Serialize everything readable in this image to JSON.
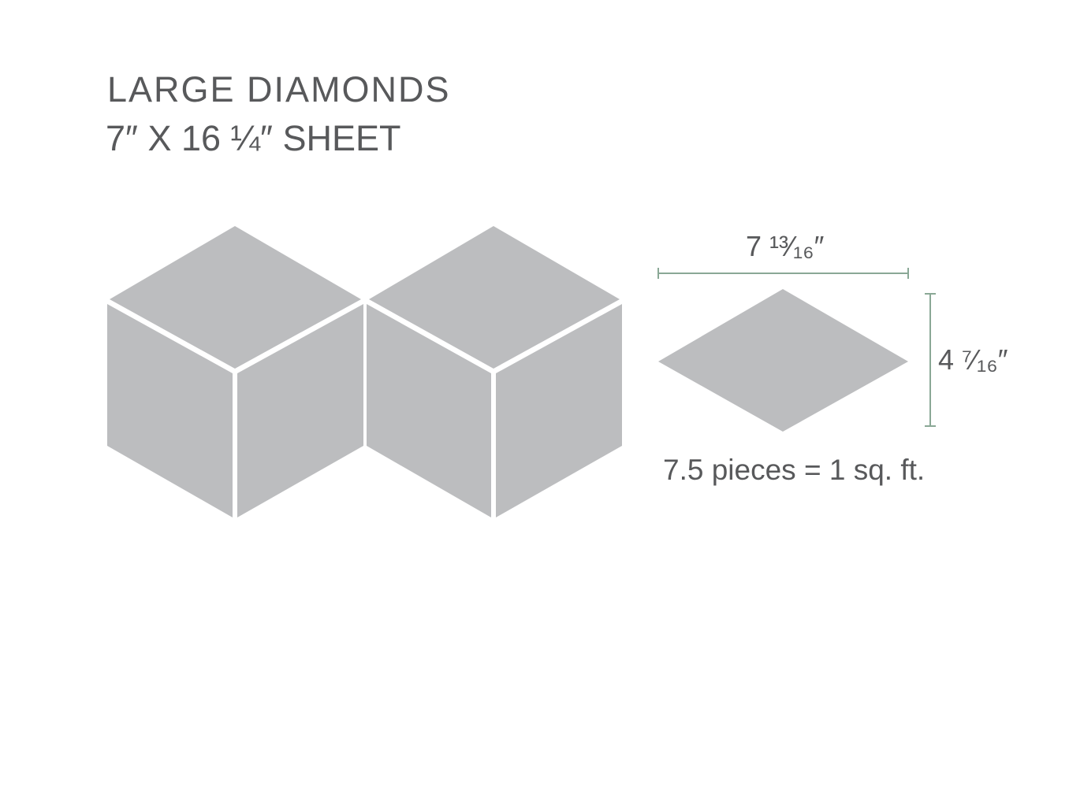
{
  "title": "LARGE DIAMONDS",
  "subtitle": "7″ X 16 ¼″ SHEET",
  "tile_width": "7 ¹³⁄₁₆″",
  "tile_height": "4 ⁷⁄₁₆″",
  "coverage_note": "7.5 pieces = 1 sq. ft.",
  "colors": {
    "tile": "#bcbdbf",
    "dimension_line": "#8aa896",
    "text": "#58595b"
  }
}
